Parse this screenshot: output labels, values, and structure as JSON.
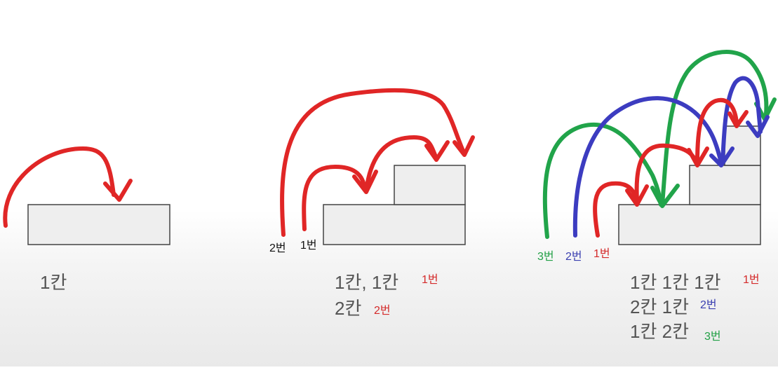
{
  "colors": {
    "red": "#e02626",
    "blue": "#3c3cc0",
    "green": "#21a44a",
    "block_fill": "#eeeeee",
    "block_stroke": "#444444"
  },
  "scene1": {
    "line1": "1칸"
  },
  "scene2": {
    "arrow_label_2": "2번",
    "arrow_label_1": "1번",
    "line1": "1칸, 1칸",
    "line1_tag": "1번",
    "line2": "2칸",
    "line2_tag": "2번"
  },
  "scene3": {
    "arrow_label_3": "3번",
    "arrow_label_2": "2번",
    "arrow_label_1": "1번",
    "line1": "1칸 1칸 1칸",
    "line1_tag": "1번",
    "line2": "2칸 1칸",
    "line2_tag": "2번",
    "line3": "1칸 2칸",
    "line3_tag": "3번"
  }
}
